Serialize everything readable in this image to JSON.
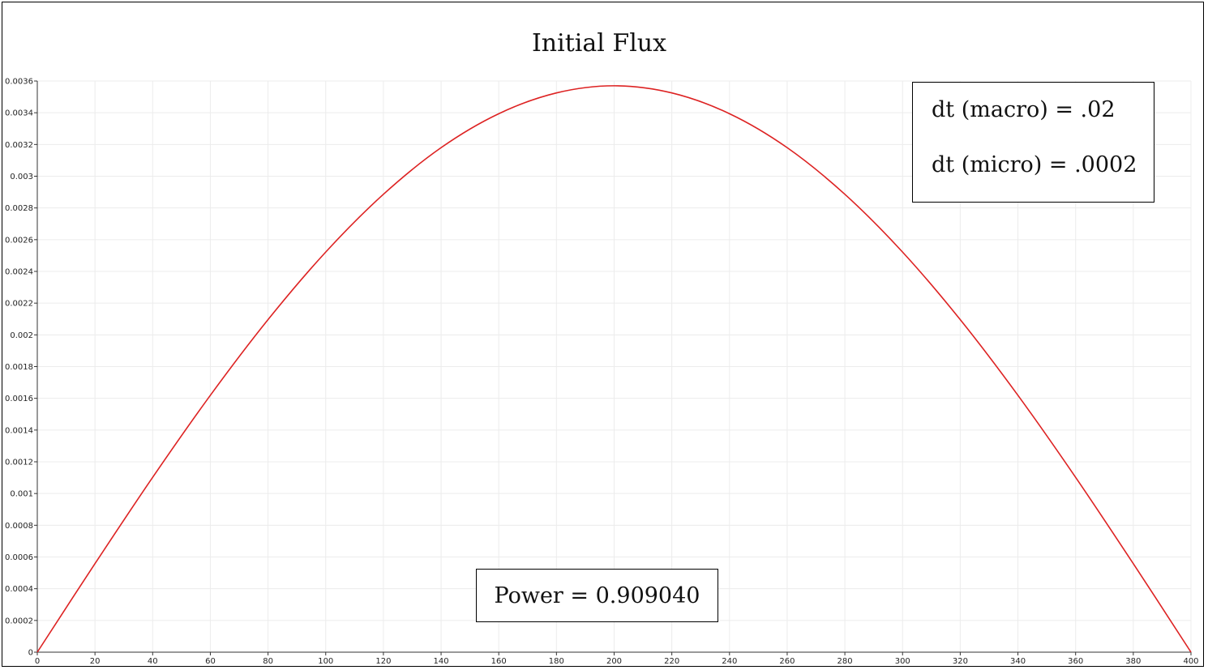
{
  "chart_data": {
    "type": "line",
    "title": "Initial Flux",
    "xlabel": "",
    "ylabel": "",
    "xlim": [
      0,
      400
    ],
    "ylim": [
      0,
      0.0036
    ],
    "x_ticks": [
      "0",
      "20",
      "40",
      "60",
      "80",
      "100",
      "120",
      "140",
      "160",
      "180",
      "200",
      "220",
      "240",
      "260",
      "280",
      "300",
      "320",
      "340",
      "360",
      "380",
      "400"
    ],
    "y_ticks": [
      "0",
      "0.0002",
      "0.0004",
      "0.0006",
      "0.0008",
      "0.001",
      "0.0012",
      "0.0014",
      "0.0016",
      "0.0018",
      "0.002",
      "0.0022",
      "0.0024",
      "0.0026",
      "0.0028",
      "0.003",
      "0.0032",
      "0.0034",
      "0.0036"
    ],
    "grid": true,
    "series": [
      {
        "color": "#dd2222",
        "x": [
          0,
          20,
          40,
          60,
          80,
          100,
          120,
          140,
          160,
          180,
          200,
          220,
          240,
          260,
          280,
          300,
          320,
          340,
          360,
          380,
          400
        ],
        "y": [
          0,
          0.000558,
          0.001102,
          0.001619,
          0.002096,
          0.002522,
          0.002886,
          0.00318,
          0.003394,
          0.003525,
          0.00357,
          0.003525,
          0.003394,
          0.00318,
          0.002886,
          0.002522,
          0.002096,
          0.001619,
          0.001102,
          0.000558,
          0
        ]
      }
    ],
    "annotations": {
      "dt_macro": "dt (macro) = .02",
      "dt_micro": "dt (micro) = .0002",
      "power": "Power = 0.909040"
    }
  }
}
